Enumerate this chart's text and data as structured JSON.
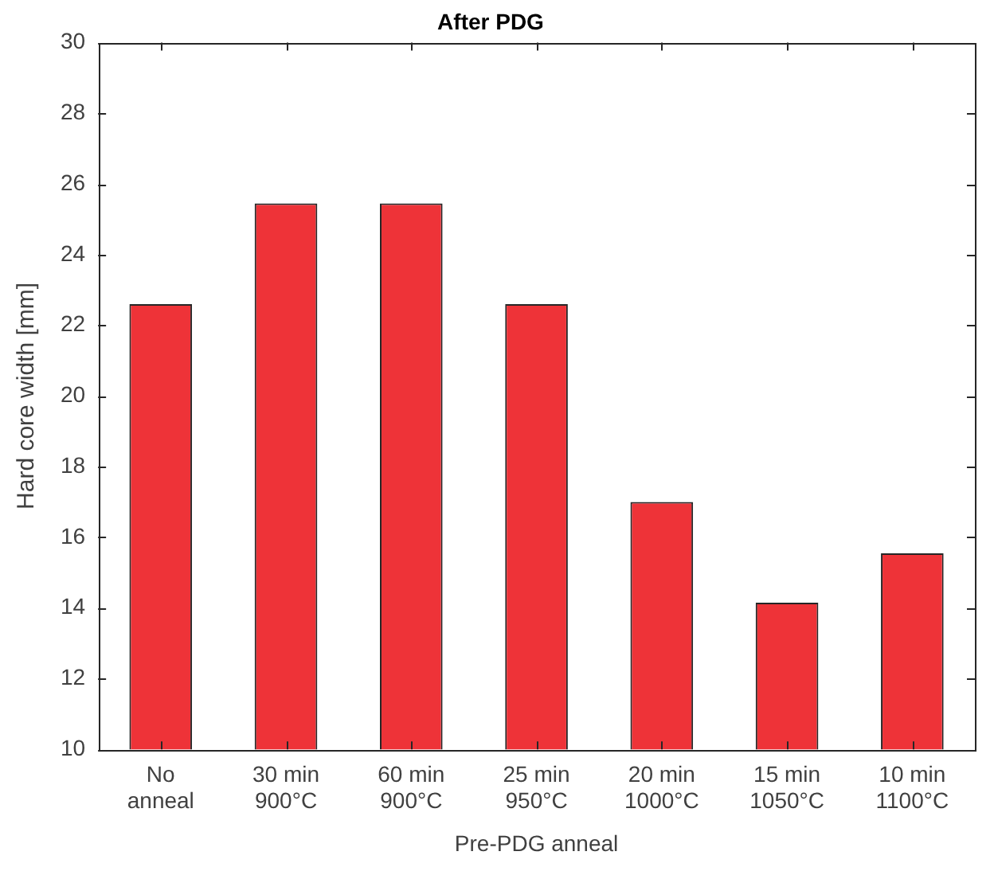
{
  "chart_data": {
    "type": "bar",
    "title": "After PDG",
    "xlabel": "Pre-PDG anneal",
    "ylabel": "Hard core width [mm]",
    "categories": [
      "No\nanneal",
      "30 min\n900°C",
      "60 min\n900°C",
      "25 min\n950°C",
      "20 min\n1000°C",
      "15 min\n1050°C",
      "10 min\n1100°C"
    ],
    "values": [
      22.6,
      25.45,
      25.45,
      22.6,
      17.0,
      14.15,
      15.55
    ],
    "color": "#ee3338",
    "ylim": [
      10,
      30
    ],
    "yticks": [
      10,
      12,
      14,
      16,
      18,
      20,
      22,
      24,
      26,
      28,
      30
    ]
  }
}
